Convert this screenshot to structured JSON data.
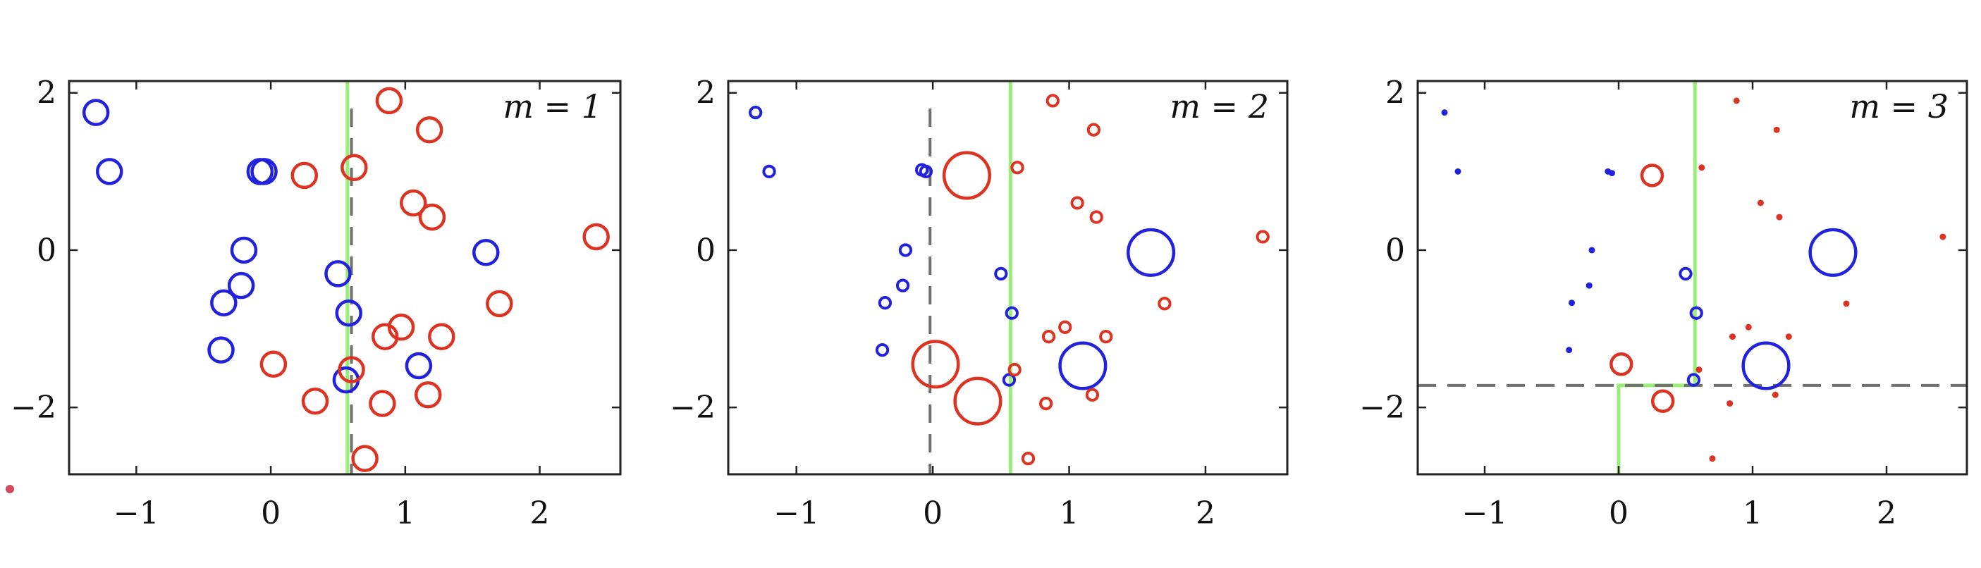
{
  "chart_data": [
    {
      "type": "scatter",
      "annotation": "m = 1",
      "xlim": [
        -1.5,
        2.6
      ],
      "ylim": [
        -2.85,
        2.15
      ],
      "xticks": [
        "−1",
        "0",
        "1",
        "2"
      ],
      "xtick_values": [
        -1,
        0,
        1,
        2
      ],
      "yticks": [
        "2",
        "0",
        "−2"
      ],
      "ytick_values": [
        2,
        0,
        -2
      ],
      "grid": false,
      "series": [
        {
          "color": "#2222dd",
          "points": [
            {
              "x": -1.3,
              "y": 1.75,
              "r": 1
            },
            {
              "x": -1.2,
              "y": 1.0,
              "r": 1
            },
            {
              "x": -0.08,
              "y": 1.0,
              "r": 1
            },
            {
              "x": -0.05,
              "y": 1.0,
              "r": 1
            },
            {
              "x": -0.2,
              "y": 0.0,
              "r": 1
            },
            {
              "x": -0.22,
              "y": -0.45,
              "r": 1
            },
            {
              "x": -0.35,
              "y": -0.67,
              "r": 1
            },
            {
              "x": -0.37,
              "y": -1.27,
              "r": 1
            },
            {
              "x": 0.5,
              "y": -0.3,
              "r": 1
            },
            {
              "x": 0.58,
              "y": -0.8,
              "r": 1
            },
            {
              "x": 0.56,
              "y": -1.65,
              "r": 1
            },
            {
              "x": 1.1,
              "y": -1.47,
              "r": 1
            },
            {
              "x": 1.6,
              "y": -0.03,
              "r": 1
            }
          ]
        },
        {
          "color": "#dd3322",
          "points": [
            {
              "x": 0.88,
              "y": 1.9,
              "r": 1
            },
            {
              "x": 1.18,
              "y": 1.53,
              "r": 1
            },
            {
              "x": 0.62,
              "y": 1.05,
              "r": 1
            },
            {
              "x": 0.25,
              "y": 0.95,
              "r": 1
            },
            {
              "x": 1.06,
              "y": 0.6,
              "r": 1
            },
            {
              "x": 1.2,
              "y": 0.42,
              "r": 1
            },
            {
              "x": 2.42,
              "y": 0.17,
              "r": 1
            },
            {
              "x": 1.7,
              "y": -0.68,
              "r": 1
            },
            {
              "x": 0.97,
              "y": -0.98,
              "r": 1
            },
            {
              "x": 0.85,
              "y": -1.1,
              "r": 1
            },
            {
              "x": 1.27,
              "y": -1.1,
              "r": 1
            },
            {
              "x": 0.02,
              "y": -1.45,
              "r": 1
            },
            {
              "x": 0.6,
              "y": -1.52,
              "r": 1
            },
            {
              "x": 0.33,
              "y": -1.92,
              "r": 1
            },
            {
              "x": 0.83,
              "y": -1.95,
              "r": 1
            },
            {
              "x": 1.17,
              "y": -1.84,
              "r": 1
            },
            {
              "x": 0.7,
              "y": -2.65,
              "r": 1
            }
          ]
        }
      ],
      "boundary_color": "#99ee77",
      "boundary": [
        [
          [
            0.57,
            2.15
          ],
          [
            0.57,
            -2.85
          ]
        ]
      ],
      "dashed": [
        [
          [
            0.6,
            1.8
          ],
          [
            0.6,
            -2.85
          ]
        ]
      ]
    },
    {
      "type": "scatter",
      "annotation": "m = 2",
      "xlim": [
        -1.5,
        2.6
      ],
      "ylim": [
        -2.85,
        2.15
      ],
      "xticks": [
        "−1",
        "0",
        "1",
        "2"
      ],
      "xtick_values": [
        -1,
        0,
        1,
        2
      ],
      "yticks": [
        "2",
        "0",
        "−2"
      ],
      "ytick_values": [
        2,
        0,
        -2
      ],
      "grid": false,
      "series": [
        {
          "color": "#2222dd",
          "points": [
            {
              "x": -1.3,
              "y": 1.75,
              "r": 0.45
            },
            {
              "x": -1.2,
              "y": 1.0,
              "r": 0.45
            },
            {
              "x": -0.08,
              "y": 1.02,
              "r": 0.45
            },
            {
              "x": -0.05,
              "y": 1.0,
              "r": 0.45
            },
            {
              "x": -0.2,
              "y": 0.0,
              "r": 0.45
            },
            {
              "x": -0.22,
              "y": -0.45,
              "r": 0.45
            },
            {
              "x": -0.35,
              "y": -0.67,
              "r": 0.45
            },
            {
              "x": -0.37,
              "y": -1.27,
              "r": 0.45
            },
            {
              "x": 0.5,
              "y": -0.3,
              "r": 0.45
            },
            {
              "x": 0.58,
              "y": -0.8,
              "r": 0.45
            },
            {
              "x": 0.56,
              "y": -1.65,
              "r": 0.45
            },
            {
              "x": 1.1,
              "y": -1.47,
              "r": 1.9
            },
            {
              "x": 1.6,
              "y": -0.03,
              "r": 1.9
            }
          ]
        },
        {
          "color": "#dd3322",
          "points": [
            {
              "x": 0.88,
              "y": 1.9,
              "r": 0.45
            },
            {
              "x": 1.18,
              "y": 1.53,
              "r": 0.45
            },
            {
              "x": 0.62,
              "y": 1.05,
              "r": 0.45
            },
            {
              "x": 0.25,
              "y": 0.95,
              "r": 1.9
            },
            {
              "x": 1.06,
              "y": 0.6,
              "r": 0.45
            },
            {
              "x": 1.2,
              "y": 0.42,
              "r": 0.45
            },
            {
              "x": 2.42,
              "y": 0.17,
              "r": 0.45
            },
            {
              "x": 1.7,
              "y": -0.68,
              "r": 0.45
            },
            {
              "x": 0.97,
              "y": -0.98,
              "r": 0.45
            },
            {
              "x": 0.85,
              "y": -1.1,
              "r": 0.45
            },
            {
              "x": 1.27,
              "y": -1.1,
              "r": 0.45
            },
            {
              "x": 0.02,
              "y": -1.45,
              "r": 1.9
            },
            {
              "x": 0.6,
              "y": -1.52,
              "r": 0.45
            },
            {
              "x": 0.33,
              "y": -1.92,
              "r": 1.9
            },
            {
              "x": 0.83,
              "y": -1.95,
              "r": 0.45
            },
            {
              "x": 1.17,
              "y": -1.84,
              "r": 0.45
            },
            {
              "x": 0.7,
              "y": -2.65,
              "r": 0.45
            }
          ]
        }
      ],
      "boundary_color": "#99ee77",
      "boundary": [
        [
          [
            0.57,
            2.15
          ],
          [
            0.57,
            -2.85
          ]
        ]
      ],
      "dashed": [
        [
          [
            -0.02,
            1.8
          ],
          [
            -0.02,
            -2.85
          ]
        ]
      ]
    },
    {
      "type": "scatter",
      "annotation": "m = 3",
      "xlim": [
        -1.5,
        2.6
      ],
      "ylim": [
        -2.85,
        2.15
      ],
      "xticks": [
        "−1",
        "0",
        "1",
        "2"
      ],
      "xtick_values": [
        -1,
        0,
        1,
        2
      ],
      "yticks": [
        "2",
        "0",
        "−2"
      ],
      "ytick_values": [
        2,
        0,
        -2
      ],
      "grid": false,
      "series": [
        {
          "color": "#2222dd",
          "points": [
            {
              "x": -1.3,
              "y": 1.75,
              "r": 0.2
            },
            {
              "x": -1.2,
              "y": 1.0,
              "r": 0.2
            },
            {
              "x": -0.08,
              "y": 1.0,
              "r": 0.2
            },
            {
              "x": -0.05,
              "y": 0.98,
              "r": 0.2
            },
            {
              "x": -0.2,
              "y": 0.0,
              "r": 0.2
            },
            {
              "x": -0.22,
              "y": -0.45,
              "r": 0.2
            },
            {
              "x": -0.35,
              "y": -0.67,
              "r": 0.2
            },
            {
              "x": -0.37,
              "y": -1.27,
              "r": 0.2
            },
            {
              "x": 0.5,
              "y": -0.3,
              "r": 0.45
            },
            {
              "x": 0.58,
              "y": -0.8,
              "r": 0.45
            },
            {
              "x": 0.56,
              "y": -1.65,
              "r": 0.45
            },
            {
              "x": 1.1,
              "y": -1.47,
              "r": 1.9
            },
            {
              "x": 1.6,
              "y": -0.03,
              "r": 1.9
            }
          ]
        },
        {
          "color": "#dd3322",
          "points": [
            {
              "x": 0.88,
              "y": 1.9,
              "r": 0.2
            },
            {
              "x": 1.18,
              "y": 1.53,
              "r": 0.2
            },
            {
              "x": 0.62,
              "y": 1.05,
              "r": 0.2
            },
            {
              "x": 0.25,
              "y": 0.95,
              "r": 0.85
            },
            {
              "x": 1.06,
              "y": 0.6,
              "r": 0.2
            },
            {
              "x": 1.2,
              "y": 0.42,
              "r": 0.2
            },
            {
              "x": 2.42,
              "y": 0.17,
              "r": 0.2
            },
            {
              "x": 1.7,
              "y": -0.68,
              "r": 0.2
            },
            {
              "x": 0.97,
              "y": -0.98,
              "r": 0.2
            },
            {
              "x": 0.85,
              "y": -1.1,
              "r": 0.2
            },
            {
              "x": 1.27,
              "y": -1.1,
              "r": 0.2
            },
            {
              "x": 0.02,
              "y": -1.45,
              "r": 0.85
            },
            {
              "x": 0.6,
              "y": -1.52,
              "r": 0.2
            },
            {
              "x": 0.33,
              "y": -1.92,
              "r": 0.85
            },
            {
              "x": 0.83,
              "y": -1.95,
              "r": 0.2
            },
            {
              "x": 1.17,
              "y": -1.84,
              "r": 0.2
            },
            {
              "x": 0.7,
              "y": -2.65,
              "r": 0.2
            }
          ]
        }
      ],
      "boundary_color": "#99ee77",
      "boundary": [
        [
          [
            0.57,
            2.15
          ],
          [
            0.57,
            -1.72
          ],
          [
            0.0,
            -1.72
          ],
          [
            0.0,
            -2.85
          ]
        ]
      ],
      "dashed": [
        [
          [
            -1.5,
            -1.72
          ],
          [
            2.6,
            -1.72
          ]
        ]
      ]
    }
  ]
}
